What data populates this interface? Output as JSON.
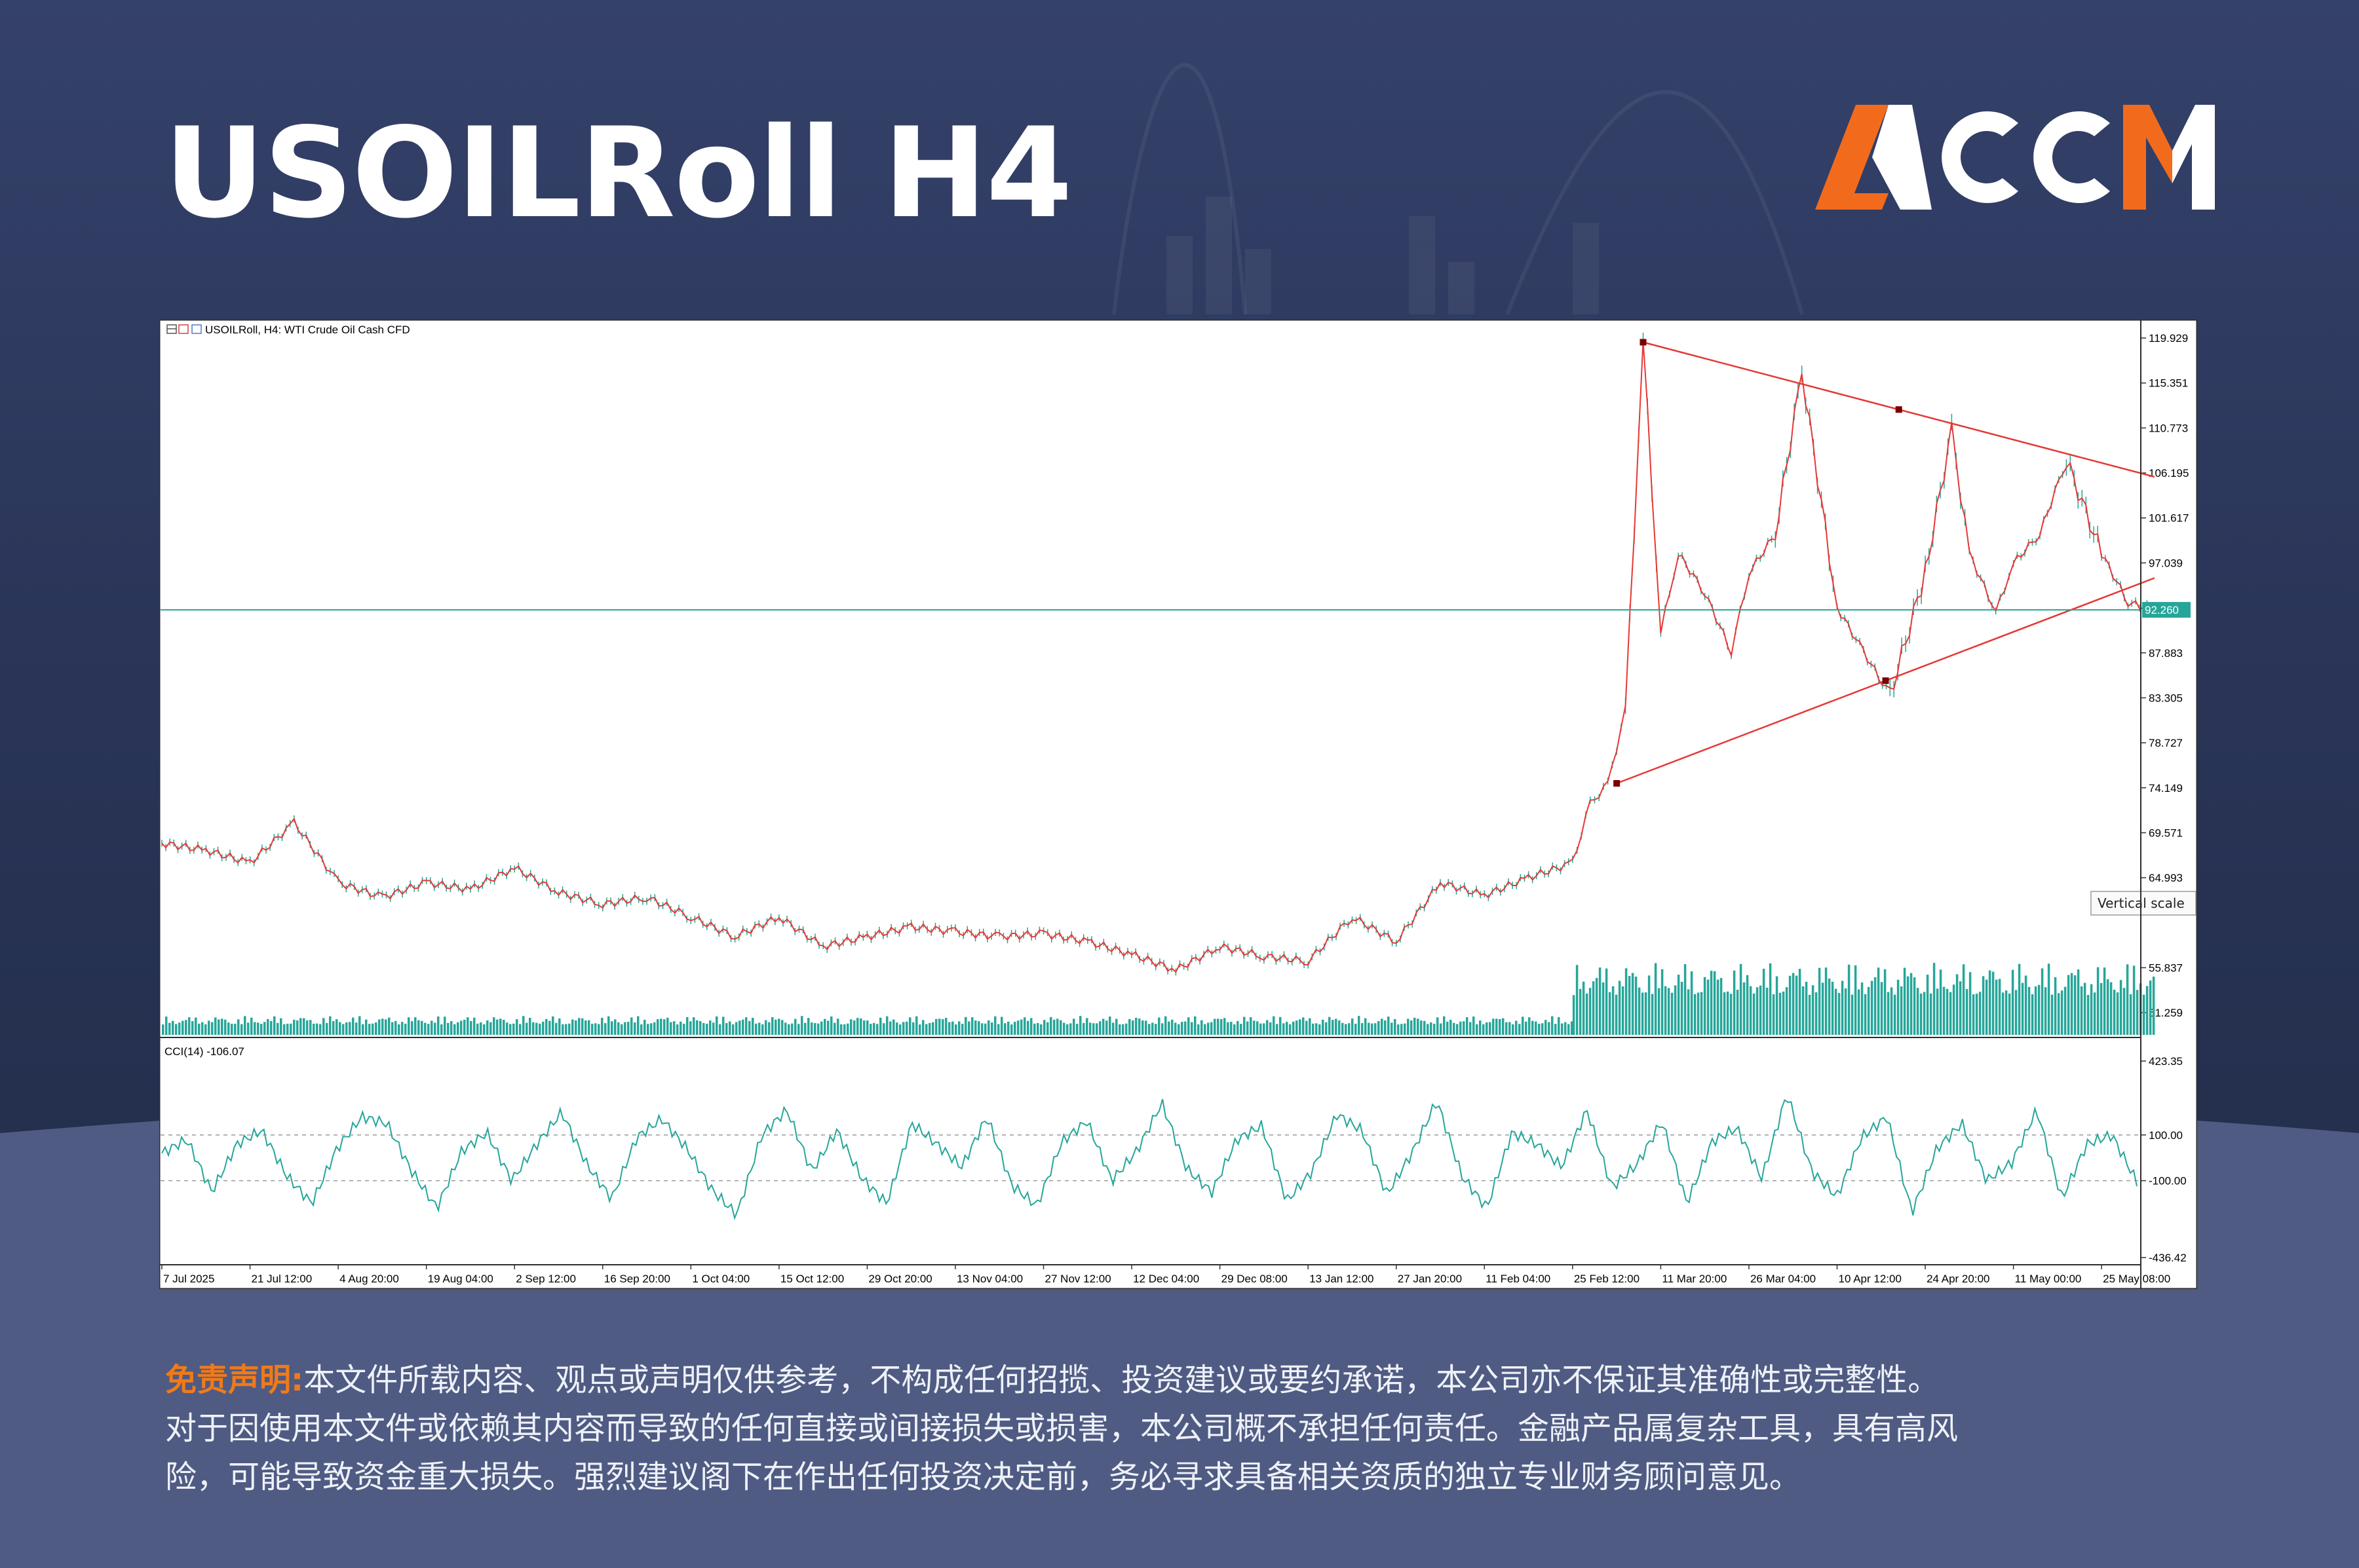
{
  "header": {
    "title": "USOILRoll H4",
    "logo_text": "ACCM"
  },
  "colors": {
    "accent_orange": "#f26b1d",
    "candle_up": "#26a69a",
    "price_line": "#e53935",
    "trend_line": "#e53935",
    "current_price_line": "#26a69a",
    "cci_line": "#26a69a"
  },
  "chart_panel": {
    "symbol_label": "USOILRoll, H4:  WTI Crude Oil Cash CFD",
    "price_tag": "92.260",
    "tooltip": "Vertical scale",
    "indicator_label": "CCI(14) -106.07"
  },
  "chart_data": [
    {
      "type": "line",
      "title": "USOILRoll, H4:  WTI Crude Oil Cash CFD",
      "xlabel": "",
      "ylabel": "",
      "ylim": [
        49.0,
        121.0
      ],
      "x_tick_labels": [
        "7 Jul 2025",
        "21 Jul 12:00",
        "4 Aug 20:00",
        "19 Aug 04:00",
        "2 Sep 12:00",
        "16 Sep 20:00",
        "1 Oct 04:00",
        "15 Oct 12:00",
        "29 Oct 20:00",
        "13 Nov 04:00",
        "27 Nov 12:00",
        "12 Dec 04:00",
        "29 Dec 08:00",
        "13 Jan 12:00",
        "27 Jan 20:00",
        "11 Feb 04:00",
        "25 Feb 12:00",
        "11 Mar 20:00",
        "26 Mar 04:00",
        "10 Apr 12:00",
        "24 Apr 20:00",
        "11 May 00:00",
        "25 May 08:00"
      ],
      "y_tick_labels": [
        "119.929",
        "115.351",
        "110.773",
        "106.195",
        "101.617",
        "97.039",
        "92.260",
        "87.883",
        "83.305",
        "78.727",
        "74.149",
        "69.571",
        "64.993",
        "55.837",
        "51.259"
      ],
      "current_price": 92.26,
      "series": [
        {
          "x": [
            0,
            0.5,
            1,
            1.5,
            2,
            2.5,
            3,
            3.5,
            4,
            4.5,
            5,
            5.5,
            6,
            6.5,
            7,
            7.5,
            8,
            8.5,
            9,
            9.5,
            10,
            10.5,
            11,
            11.5,
            12,
            12.5,
            13,
            13.5,
            14,
            14.5,
            15,
            15.5,
            16,
            16.2,
            16.4,
            16.6,
            16.8,
            17,
            17.2,
            17.5,
            17.8,
            18,
            18.3,
            18.6,
            19,
            19.3,
            19.6,
            20,
            20.3,
            20.5,
            20.8,
            21,
            21.3,
            21.6,
            22,
            22.3,
            22.6
          ],
          "values": [
            68.5,
            67.8,
            66.5,
            70.6,
            64.5,
            63.0,
            64.5,
            63.8,
            66.0,
            63.5,
            62.3,
            63.0,
            61.0,
            59.0,
            61.0,
            58.0,
            59.0,
            60.0,
            59.5,
            59.0,
            59.3,
            58.5,
            57.2,
            55.6,
            58.0,
            57.0,
            56.5,
            61.0,
            58.5,
            64.5,
            63.2,
            65.0,
            66.5,
            72.5,
            74.5,
            82.0,
            119.5,
            90.0,
            98.0,
            94.0,
            88.0,
            96.0,
            100.0,
            116.5,
            92.5,
            88.0,
            83.5,
            96.0,
            110.5,
            98.0,
            92.0,
            97.0,
            100.0,
            107.5,
            98.0,
            93.0,
            92.3
          ]
        }
      ],
      "trendlines": [
        {
          "from": {
            "x": 16.8,
            "y": 119.5
          },
          "to": {
            "x": 22.6,
            "y": 105.8
          }
        },
        {
          "from": {
            "x": 16.5,
            "y": 74.6
          },
          "to": {
            "x": 22.6,
            "y": 95.5
          }
        }
      ],
      "volume": [
        {
          "from_x": 0,
          "to_x": 16.0,
          "level": 0.17
        },
        {
          "from_x": 16.0,
          "to_x": 22.6,
          "level": 0.65
        }
      ]
    },
    {
      "type": "line",
      "title": "CCI(14) -106.07",
      "ylim": [
        -436.42,
        423.35
      ],
      "y_tick_labels": [
        "423.35",
        "100.00",
        "-100.00",
        "-436.42"
      ],
      "reference_lines": [
        100,
        -100
      ],
      "series": [
        {
          "name": "CCI(14)",
          "values": [
            20,
            80,
            -150,
            60,
            120,
            -80,
            -200,
            40,
            180,
            150,
            -60,
            -220,
            30,
            110,
            -100,
            60,
            200,
            -30,
            -180,
            90,
            170,
            40,
            -140,
            -250,
            100,
            210,
            -60,
            120,
            -90,
            -200,
            150,
            60,
            -40,
            180,
            -120,
            -210,
            70,
            160,
            -100,
            30,
            240,
            -50,
            -150,
            80,
            140,
            -190,
            -60,
            190,
            120,
            -160,
            20,
            250,
            -80,
            -220,
            110,
            60,
            -40,
            210,
            -130,
            -30,
            160,
            -200,
            70,
            130,
            -90,
            280,
            -60,
            -170,
            90,
            180,
            -240,
            40,
            150,
            -100,
            -20,
            210,
            -180,
            60,
            100,
            -106
          ]
        }
      ]
    }
  ],
  "disclaimer": {
    "label": "免责声明:",
    "line1": "本文件所载内容、观点或声明仅供参考，不构成任何招揽、投资建议或要约承诺，本公司亦不保证其准确性或完整性。",
    "line2": "对于因使用本文件或依赖其内容而导致的任何直接或间接损失或损害，本公司概不承担任何责任。金融产品属复杂工具，具有高风",
    "line3": "险，可能导致资金重大损失。强烈建议阁下在作出任何投资决定前，务必寻求具备相关资质的独立专业财务顾问意见。"
  }
}
